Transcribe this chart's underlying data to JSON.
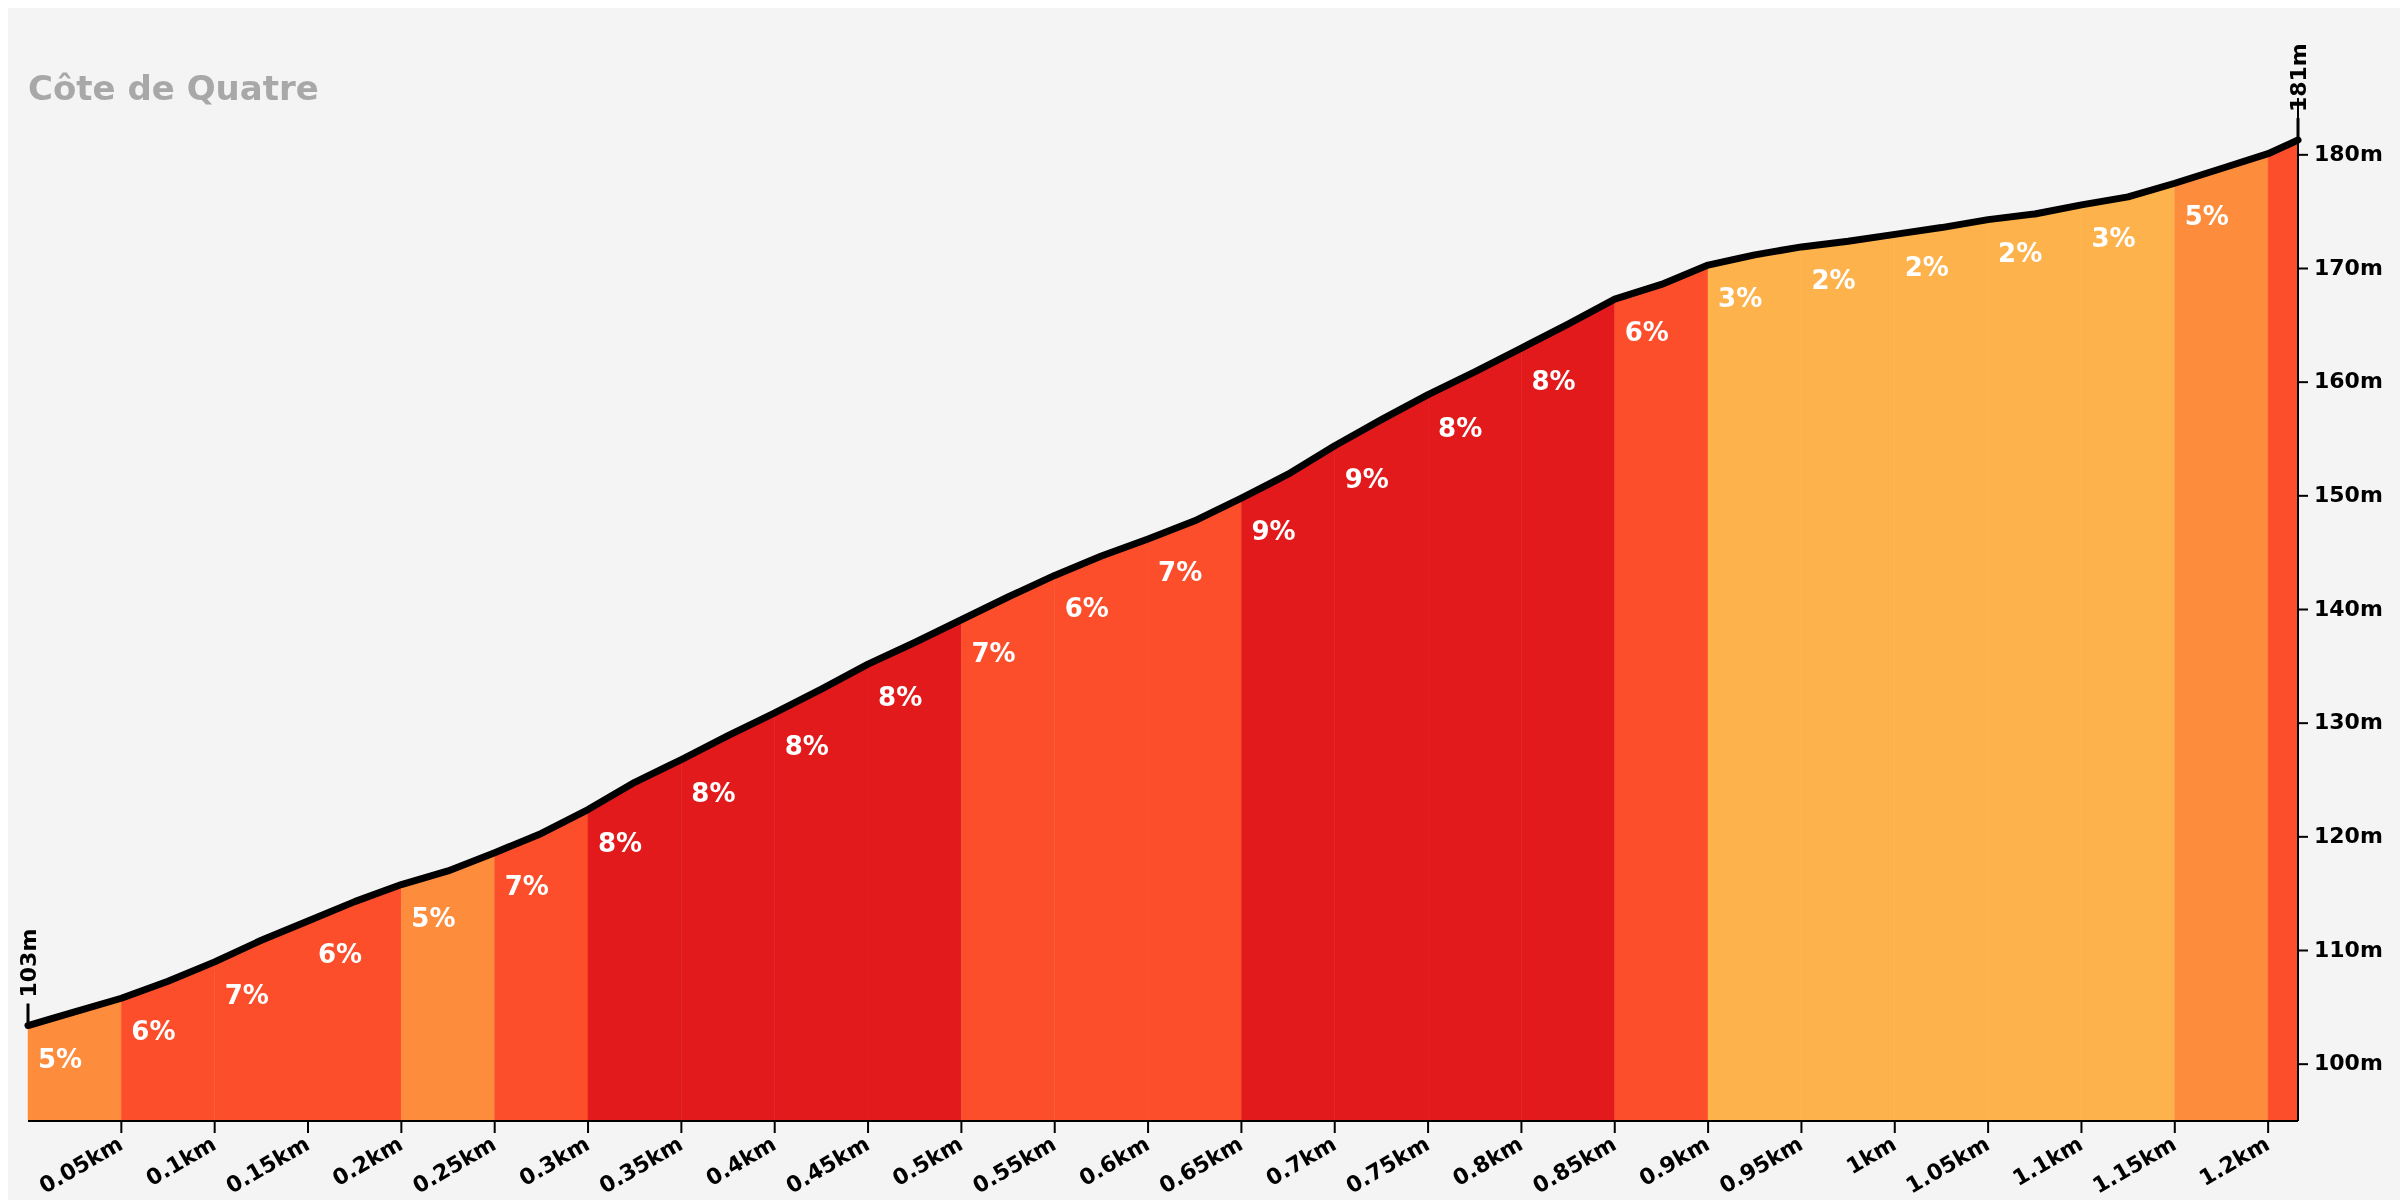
{
  "chart_data": {
    "type": "area",
    "title": "Côte de Quatre",
    "xlim": [
      0,
      1.216
    ],
    "ylim": [
      95,
      185
    ],
    "xticks": [
      {
        "value": 0.05,
        "label": "0.05km"
      },
      {
        "value": 0.1,
        "label": "0.1km"
      },
      {
        "value": 0.15,
        "label": "0.15km"
      },
      {
        "value": 0.2,
        "label": "0.2km"
      },
      {
        "value": 0.25,
        "label": "0.25km"
      },
      {
        "value": 0.3,
        "label": "0.3km"
      },
      {
        "value": 0.35,
        "label": "0.35km"
      },
      {
        "value": 0.4,
        "label": "0.4km"
      },
      {
        "value": 0.45,
        "label": "0.45km"
      },
      {
        "value": 0.5,
        "label": "0.5km"
      },
      {
        "value": 0.55,
        "label": "0.55km"
      },
      {
        "value": 0.6,
        "label": "0.6km"
      },
      {
        "value": 0.65,
        "label": "0.65km"
      },
      {
        "value": 0.7,
        "label": "0.7km"
      },
      {
        "value": 0.75,
        "label": "0.75km"
      },
      {
        "value": 0.8,
        "label": "0.8km"
      },
      {
        "value": 0.85,
        "label": "0.85km"
      },
      {
        "value": 0.9,
        "label": "0.9km"
      },
      {
        "value": 0.95,
        "label": "0.95km"
      },
      {
        "value": 1,
        "label": "1km"
      },
      {
        "value": 1.05,
        "label": "1.05km"
      },
      {
        "value": 1.1,
        "label": "1.1km"
      },
      {
        "value": 1.15,
        "label": "1.15km"
      },
      {
        "value": 1.2,
        "label": "1.2km"
      }
    ],
    "yticks": [
      {
        "value": 100,
        "label": "100m"
      },
      {
        "value": 110,
        "label": "110m"
      },
      {
        "value": 120,
        "label": "120m"
      },
      {
        "value": 130,
        "label": "130m"
      },
      {
        "value": 140,
        "label": "140m"
      },
      {
        "value": 150,
        "label": "150m"
      },
      {
        "value": 160,
        "label": "160m"
      },
      {
        "value": 170,
        "label": "170m"
      },
      {
        "value": 180,
        "label": "180m"
      }
    ],
    "grid": false,
    "series": [
      {
        "color": "#fd8d3c",
        "x": [
          0,
          0.025,
          0.05
        ],
        "values": [
          103.4,
          104.6,
          105.8
        ]
      },
      {
        "color": "#fc4e2a",
        "x": [
          0.05,
          0.075,
          0.1
        ],
        "values": [
          105.8,
          107.3,
          109.0
        ]
      },
      {
        "color": "#fc4e2a",
        "x": [
          0.1,
          0.125,
          0.15
        ],
        "values": [
          109.0,
          110.9,
          112.6
        ]
      },
      {
        "color": "#fc4e2a",
        "x": [
          0.15,
          0.175,
          0.2
        ],
        "values": [
          112.6,
          114.3,
          115.8
        ]
      },
      {
        "color": "#fd8d3c",
        "x": [
          0.2,
          0.225,
          0.25
        ],
        "values": [
          115.8,
          117.0,
          118.6
        ]
      },
      {
        "color": "#fc4e2a",
        "x": [
          0.25,
          0.275,
          0.3
        ],
        "values": [
          118.6,
          120.3,
          122.4
        ]
      },
      {
        "color": "#e31a1c",
        "x": [
          0.3,
          0.325,
          0.35
        ],
        "values": [
          122.4,
          124.8,
          126.8
        ]
      },
      {
        "color": "#e31a1c",
        "x": [
          0.35,
          0.375,
          0.4
        ],
        "values": [
          126.8,
          128.9,
          130.9
        ]
      },
      {
        "color": "#e31a1c",
        "x": [
          0.4,
          0.425,
          0.45
        ],
        "values": [
          130.9,
          133.0,
          135.2
        ]
      },
      {
        "color": "#e31a1c",
        "x": [
          0.45,
          0.475,
          0.5
        ],
        "values": [
          135.2,
          137.1,
          139.1
        ]
      },
      {
        "color": "#fc4e2a",
        "x": [
          0.5,
          0.525,
          0.55
        ],
        "values": [
          139.1,
          141.1,
          143.0
        ]
      },
      {
        "color": "#fc4e2a",
        "x": [
          0.55,
          0.575,
          0.6
        ],
        "values": [
          143.0,
          144.7,
          146.2
        ]
      },
      {
        "color": "#fc4e2a",
        "x": [
          0.6,
          0.625,
          0.65
        ],
        "values": [
          146.2,
          147.8,
          149.8
        ]
      },
      {
        "color": "#e31a1c",
        "x": [
          0.65,
          0.675,
          0.7
        ],
        "values": [
          149.8,
          151.9,
          154.4
        ]
      },
      {
        "color": "#e31a1c",
        "x": [
          0.7,
          0.725,
          0.75
        ],
        "values": [
          154.4,
          156.7,
          158.9
        ]
      },
      {
        "color": "#e31a1c",
        "x": [
          0.75,
          0.775,
          0.8
        ],
        "values": [
          158.9,
          160.9,
          163.0
        ]
      },
      {
        "color": "#e31a1c",
        "x": [
          0.8,
          0.825,
          0.85
        ],
        "values": [
          163.0,
          165.1,
          167.3
        ]
      },
      {
        "color": "#fc4e2a",
        "x": [
          0.85,
          0.875,
          0.9
        ],
        "values": [
          167.3,
          168.6,
          170.3
        ]
      },
      {
        "color": "#feb24c",
        "x": [
          0.9,
          0.925,
          0.95
        ],
        "values": [
          170.3,
          171.2,
          171.9
        ]
      },
      {
        "color": "#feb24c",
        "x": [
          0.95,
          0.975,
          1.0
        ],
        "values": [
          171.9,
          172.4,
          173.0
        ]
      },
      {
        "color": "#feb24c",
        "x": [
          1.0,
          1.025,
          1.05
        ],
        "values": [
          173.0,
          173.6,
          174.3
        ]
      },
      {
        "color": "#feb24c",
        "x": [
          1.05,
          1.075,
          1.1
        ],
        "values": [
          174.3,
          174.8,
          175.6
        ]
      },
      {
        "color": "#feb24c",
        "x": [
          1.1,
          1.125,
          1.15
        ],
        "values": [
          175.6,
          176.3,
          177.5
        ]
      },
      {
        "color": "#fd8d3c",
        "x": [
          1.15,
          1.175,
          1.2
        ],
        "values": [
          177.5,
          178.8,
          180.1
        ]
      },
      {
        "color": "#fc4e2a",
        "x": [
          1.2,
          1.216
        ],
        "values": [
          180.1,
          181.3
        ]
      },
      {
        "type": "line",
        "color": "#000000",
        "x": [
          0,
          0.025,
          0.05,
          0.075,
          0.1,
          0.125,
          0.15,
          0.175,
          0.2,
          0.225,
          0.25,
          0.275,
          0.3,
          0.325,
          0.35,
          0.375,
          0.4,
          0.425,
          0.45,
          0.475,
          0.5,
          0.525,
          0.55,
          0.575,
          0.6,
          0.625,
          0.65,
          0.675,
          0.7,
          0.725,
          0.75,
          0.775,
          0.8,
          0.825,
          0.85,
          0.875,
          0.9,
          0.925,
          0.95,
          0.975,
          1.0,
          1.025,
          1.05,
          1.075,
          1.1,
          1.125,
          1.15,
          1.175,
          1.2,
          1.216
        ],
        "values": [
          103.4,
          104.6,
          105.8,
          107.3,
          109.0,
          110.9,
          112.6,
          114.3,
          115.8,
          117.0,
          118.6,
          120.3,
          122.4,
          124.8,
          126.8,
          128.9,
          130.9,
          133.0,
          135.2,
          137.1,
          139.1,
          141.1,
          143.0,
          144.7,
          146.2,
          147.8,
          149.8,
          151.9,
          154.4,
          156.7,
          158.9,
          160.9,
          163.0,
          165.1,
          167.3,
          168.6,
          170.3,
          171.2,
          171.9,
          172.4,
          173.0,
          173.6,
          174.3,
          174.8,
          175.6,
          176.3,
          177.5,
          178.8,
          180.1,
          181.3
        ]
      }
    ],
    "annotations": [
      {
        "text": "103m",
        "x": 0,
        "y": 103.4
      },
      {
        "text": "181m",
        "x": 1.216,
        "y": 181.3
      },
      {
        "text": "5%",
        "x": 0,
        "y": 103.4
      },
      {
        "text": "6%",
        "x": 0.05,
        "y": 105.8
      },
      {
        "text": "7%",
        "x": 0.1,
        "y": 109.0
      },
      {
        "text": "6%",
        "x": 0.15,
        "y": 112.6
      },
      {
        "text": "5%",
        "x": 0.2,
        "y": 115.8
      },
      {
        "text": "7%",
        "x": 0.25,
        "y": 118.6
      },
      {
        "text": "8%",
        "x": 0.3,
        "y": 122.4
      },
      {
        "text": "8%",
        "x": 0.35,
        "y": 126.8
      },
      {
        "text": "8%",
        "x": 0.4,
        "y": 130.9
      },
      {
        "text": "8%",
        "x": 0.45,
        "y": 135.2
      },
      {
        "text": "7%",
        "x": 0.5,
        "y": 139.1
      },
      {
        "text": "6%",
        "x": 0.55,
        "y": 143.0
      },
      {
        "text": "7%",
        "x": 0.6,
        "y": 146.2
      },
      {
        "text": "9%",
        "x": 0.65,
        "y": 149.8
      },
      {
        "text": "9%",
        "x": 0.7,
        "y": 154.4
      },
      {
        "text": "8%",
        "x": 0.75,
        "y": 158.9
      },
      {
        "text": "8%",
        "x": 0.8,
        "y": 163.0
      },
      {
        "text": "6%",
        "x": 0.85,
        "y": 167.3
      },
      {
        "text": "3%",
        "x": 0.9,
        "y": 170.3
      },
      {
        "text": "2%",
        "x": 0.95,
        "y": 171.9
      },
      {
        "text": "2%",
        "x": 1.0,
        "y": 173.0
      },
      {
        "text": "2%",
        "x": 1.05,
        "y": 174.3
      },
      {
        "text": "3%",
        "x": 1.1,
        "y": 175.6
      },
      {
        "text": "5%",
        "x": 1.15,
        "y": 177.5
      }
    ]
  }
}
